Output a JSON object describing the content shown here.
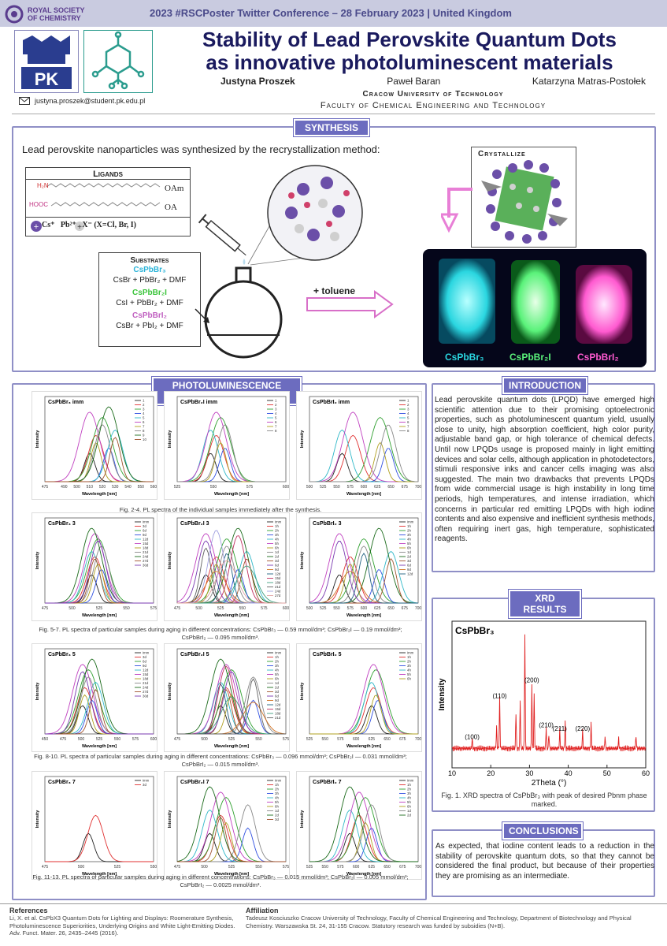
{
  "header": {
    "org_line1": "ROYAL SOCIETY",
    "org_line2": "OF CHEMISTRY",
    "conference": "2023 #RSCPoster Twitter Conference – 28 February 2023 | United Kingdom",
    "logo_text": "PK"
  },
  "title_line1": "Stability of Lead Perovskite Quantum Dots",
  "title_line2": "as innovative photoluminescent materials",
  "authors": [
    "Justyna Proszek",
    "Paweł Baran",
    "Katarzyna Matras-Postołek"
  ],
  "university": "Cracow University of Technology",
  "faculty": "Faculty of Chemical Engineering and Technology",
  "email": "justyna.proszek@student.pk.edu.pl",
  "synthesis": {
    "tag": "SYNTHESIS",
    "intro": "Lead perovskite nanoparticles was synthesized by the recrystallization method:",
    "ligands_title": "Ligands",
    "ligand_amine_head": "H₂N",
    "ligand_amine": "OAm",
    "ligand_acid_head": "HOOC",
    "ligand_acid": "OA",
    "ions_line": "Cs⁺   Pb²⁺   X⁻ (X=Cl, Br, I)",
    "substrates_title": "Substrates",
    "sub1_name": "CsPbBr₃",
    "sub1_eq": "CsBr + PbBr₂ + DMF",
    "sub2_name": "CsPbBr₂I",
    "sub2_eq": "CsI + PbBr₂ + DMF",
    "sub3_name": "CsPbBrI₂",
    "sub3_eq": "CsBr + PbI₂ + DMF",
    "crystallize": "Crystallize",
    "toluene": "+ toluene",
    "jar1": "CsPbBr₃",
    "jar2": "CsPbBr₂I",
    "jar3": "CsPbBrI₂",
    "colors": {
      "jar1": "#2ad6e0",
      "jar2": "#5af27a",
      "jar3": "#ff5ad0",
      "arrow": "#e87fd6"
    }
  },
  "pl": {
    "tag": "PHOTOLUMINESCENCE RESULTS",
    "fig1_caption": "Fig. 2-4. PL spectra of the individual samples immediately after the synthesis.",
    "fig2_caption": "Fig. 5-7. PL spectra of particular samples during aging in different concentrations: CsPbBr₃ — 0.59 mmol/dm³; CsPbBr₂I — 0.19 mmol/dm³; CsPbBrI₂ — 0.095 mmol/dm³.",
    "fig3_caption": "Fig. 8-10. PL spectra of particular samples during aging in different concentrations: CsPbBr₃ — 0.096 mmol/dm³; CsPbBr₂I — 0.031 mmol/dm³; CsPbBrI₂ — 0.015 mmol/dm³.",
    "fig4_caption": "Fig. 11-13. PL spectra of particular samples during aging in different concentrations: CsPbBr₃ — 0.015 mmol/dm³; CsPbBr₂I — 0.005 mmol/dm³; CsPbBrI₂ — 0.0025 mmol/dm³.",
    "ylabel": "Intensity",
    "xlabel": "Wavelength [nm]"
  },
  "plots": [
    {
      "label": "CsPbBr₃ imm",
      "x": [
        475,
        490,
        500,
        510,
        520,
        530,
        540,
        550,
        560
      ],
      "peaks": [
        510,
        515,
        520,
        525,
        530
      ],
      "legend": [
        "1",
        "2",
        "3",
        "4",
        "5",
        "6",
        "7",
        "8",
        "9",
        "10"
      ]
    },
    {
      "label": "CsPbBr₂I imm",
      "x": [
        525,
        550,
        575,
        600
      ],
      "peaks": [
        548,
        552,
        555,
        558
      ],
      "legend": [
        "1",
        "2",
        "3",
        "4",
        "5",
        "6",
        "7",
        "8"
      ]
    },
    {
      "label": "CsPbBrI₂ imm",
      "x": [
        500,
        525,
        550,
        575,
        600,
        625,
        650,
        675,
        700
      ],
      "peaks": [
        560,
        580,
        630,
        645
      ],
      "legend": [
        "1",
        "2",
        "3",
        "4",
        "5",
        "6",
        "7",
        "8"
      ]
    },
    {
      "label": "CsPbBr₃ 3",
      "x": [
        475,
        500,
        525,
        550,
        575
      ],
      "peaks": [
        518,
        521,
        524,
        527
      ],
      "legend": [
        "imm",
        "3d",
        "6d",
        "9d",
        "12d",
        "15d",
        "18d",
        "21d",
        "24d",
        "27d",
        "30d"
      ]
    },
    {
      "label": "CsPbBr₂I 3",
      "x": [
        475,
        500,
        525,
        550,
        575,
        600
      ],
      "peaks": [
        508,
        520,
        532,
        545,
        555
      ],
      "legend": [
        "imm",
        "1h",
        "2h",
        "3h",
        "4h",
        "5h",
        "6h",
        "1d",
        "2d",
        "3d",
        "6d",
        "9d",
        "12d",
        "15d",
        "18d",
        "21d",
        "24d",
        "27d"
      ]
    },
    {
      "label": "CsPbBrI₂ 3",
      "x": [
        500,
        525,
        550,
        575,
        600,
        625,
        650,
        675,
        700
      ],
      "peaks": [
        555,
        575,
        600,
        628,
        650
      ],
      "legend": [
        "imm",
        "1h",
        "2h",
        "3h",
        "4h",
        "5h",
        "6h",
        "1d",
        "2d",
        "3d",
        "6d",
        "9d",
        "12d"
      ]
    },
    {
      "label": "CsPbBr₃ 5",
      "x": [
        450,
        475,
        500,
        525,
        550,
        575,
        600
      ],
      "peaks": [
        502,
        505,
        510,
        515,
        520
      ],
      "legend": [
        "imm",
        "3d",
        "6d",
        "9d",
        "12d",
        "15d",
        "18d",
        "21d",
        "24d",
        "27d",
        "30d"
      ]
    },
    {
      "label": "CsPbBr₂I 5",
      "x": [
        475,
        500,
        525,
        550,
        575
      ],
      "peaks": [
        515,
        520,
        525,
        545
      ],
      "legend": [
        "imm",
        "1h",
        "2h",
        "3h",
        "4h",
        "5h",
        "6h",
        "1d",
        "2d",
        "3d",
        "6d",
        "9d",
        "12d",
        "15d",
        "18d",
        "21d"
      ]
    },
    {
      "label": "CsPbBrI₂ 5",
      "x": [
        525,
        550,
        575,
        600,
        625,
        650,
        675,
        700
      ],
      "peaks": [
        625,
        628,
        632,
        635
      ],
      "legend": [
        "imm",
        "1h",
        "2h",
        "3h",
        "4h",
        "5h",
        "6h"
      ]
    },
    {
      "label": "CsPbBr₃ 7",
      "x": [
        475,
        500,
        525,
        550
      ],
      "peaks": [
        505,
        510
      ],
      "legend": [
        "imm",
        "3d"
      ]
    },
    {
      "label": "CsPbBr₂I 7",
      "x": [
        475,
        500,
        525,
        550,
        575
      ],
      "peaks": [
        505,
        515,
        520,
        540
      ],
      "legend": [
        "imm",
        "1h",
        "2h",
        "3h",
        "4h",
        "5h",
        "6h",
        "1d",
        "2d",
        "3d"
      ]
    },
    {
      "label": "CsPbBrI₂ 7",
      "x": [
        525,
        550,
        575,
        600,
        625,
        650,
        675,
        700
      ],
      "peaks": [
        590,
        605,
        615,
        625
      ],
      "legend": [
        "imm",
        "1h",
        "2h",
        "3h",
        "4h",
        "5h",
        "6h",
        "1d",
        "2d"
      ]
    }
  ],
  "introduction": {
    "tag": "INTRODUCTION",
    "text": "Lead perovskite quantum dots (LPQD) have emerged high scientific attention due to their promising optoelectronic properties, such as photoluminescent quantum yield, usually close to unity, high absorption coefficient, high color purity, adjustable band gap, or high tolerance of chemical defects. Until now LPQDs usage is proposed mainly in light emitting devices and solar cells, although application in photodetectors, stimuli responsive inks and cancer cells imaging was also suggested. The main two drawbacks that prevents LPQDs from wide commercial usage is high instability in long time periods, high temperatures, and intense irradiation, which concerns in particular red emitting LPQDs with high iodine contents and also expensive and inefficient synthesis methods, often requiring inert gas, high temperature, sophisticated reagents."
  },
  "xrd": {
    "tag": "XRD RESULTS",
    "caption": "Fig. 1. XRD spectra of CsPbBr₃ with peak of desired Pbnm phase marked."
  },
  "chart_data": {
    "type": "line",
    "title": "CsPbBr₃",
    "xlabel": "2Theta (°)",
    "ylabel": "Intensity",
    "xlim": [
      10,
      60
    ],
    "xticks": [
      10,
      20,
      30,
      40,
      50,
      60
    ],
    "peaks": [
      {
        "x": 15.2,
        "h": 0.08
      },
      {
        "x": 21.5,
        "h": 0.18
      },
      {
        "x": 22.3,
        "h": 0.42
      },
      {
        "x": 26.5,
        "h": 0.3
      },
      {
        "x": 27.6,
        "h": 0.4
      },
      {
        "x": 28.8,
        "h": 0.95
      },
      {
        "x": 30.6,
        "h": 0.55
      },
      {
        "x": 31.2,
        "h": 0.45
      },
      {
        "x": 34.3,
        "h": 0.18
      },
      {
        "x": 35.0,
        "h": 0.12
      },
      {
        "x": 37.8,
        "h": 0.15
      },
      {
        "x": 39.2,
        "h": 0.22
      },
      {
        "x": 43.7,
        "h": 0.15
      },
      {
        "x": 45.9,
        "h": 0.2
      },
      {
        "x": 49.5,
        "h": 0.1
      },
      {
        "x": 53.0,
        "h": 0.08
      },
      {
        "x": 57.5,
        "h": 0.1
      }
    ],
    "annotations": [
      {
        "text": "(100)",
        "x": 15.2
      },
      {
        "text": "(110)",
        "x": 22.3
      },
      {
        "text": "(200)",
        "x": 30.6
      },
      {
        "text": "(210)",
        "x": 34.3
      },
      {
        "text": "(211)",
        "x": 37.8
      },
      {
        "text": "(220)",
        "x": 43.7
      }
    ],
    "color": "#e02020"
  },
  "conclusions": {
    "tag": "CONCLUSIONS",
    "text": "As expected, that iodine content leads to a reduction in the stability of perovskite quantum dots, so that they cannot be considered the final product, but because of their properties they are promising as an intermediate."
  },
  "references": {
    "title": "References",
    "text": "Li, X. et al. CsPbX3 Quantum Dots for Lighting and Displays: Roomerature Synthesis, Photoluminescence Superiorities, Underlying Origins and White Light-Emitting Diodes. Adv. Funct. Mater. 26, 2435–2445 (2016)."
  },
  "affiliation": {
    "title": "Affiliation",
    "text": "Tadeusz Kosciuszko Cracow University of Technology, Faculty of Chemical Engineering and Technology, Department of Biotechnology and Physical Chemistry. Warszawska St. 24, 31-155 Cracow. Statutory research was funded by subsidies (N+B)."
  }
}
